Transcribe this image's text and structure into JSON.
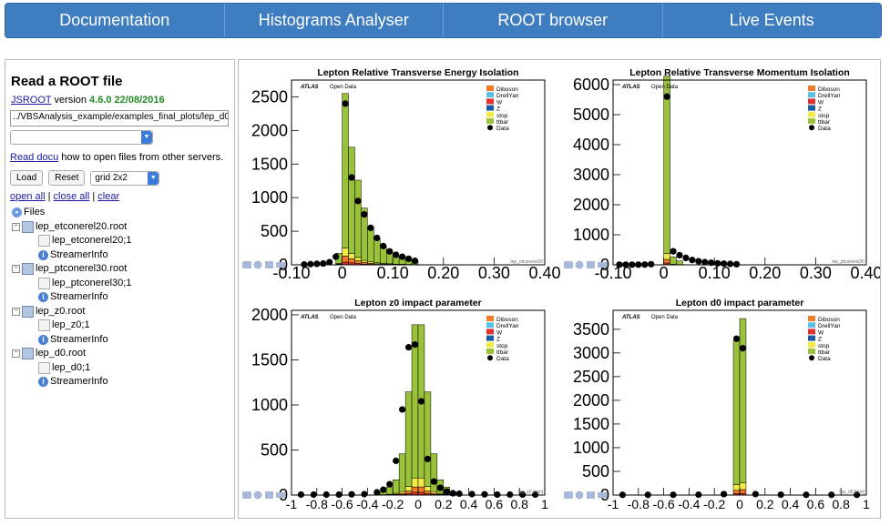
{
  "nav": [
    "Documentation",
    "Histograms Analyser",
    "ROOT browser",
    "Live Events"
  ],
  "left": {
    "title": "Read a ROOT file",
    "jsroot_link": "JSROOT",
    "version_word": "version",
    "version": "4.6.0 22/08/2016",
    "file_path": "../VBSAnalysis_example/examples_final_plots/lep_d0",
    "docu_link": "Read docu",
    "docu_text": "how to open files from other servers.",
    "load": "Load",
    "reset": "Reset",
    "grid": "grid 2x2",
    "open_all": "open all",
    "close_all": "close all",
    "clear": "clear",
    "sep": "|"
  },
  "tree": [
    {
      "label": "Files",
      "kind": "root"
    },
    {
      "label": "lep_etconerel20.root",
      "kind": "file"
    },
    {
      "label": "lep_etconerel20;1",
      "kind": "leaf"
    },
    {
      "label": "StreamerInfo",
      "kind": "info"
    },
    {
      "label": "lep_ptconerel30.root",
      "kind": "file"
    },
    {
      "label": "lep_ptconerel30;1",
      "kind": "leaf"
    },
    {
      "label": "StreamerInfo",
      "kind": "info"
    },
    {
      "label": "lep_z0.root",
      "kind": "file"
    },
    {
      "label": "lep_z0;1",
      "kind": "leaf"
    },
    {
      "label": "StreamerInfo",
      "kind": "info"
    },
    {
      "label": "lep_d0.root",
      "kind": "file"
    },
    {
      "label": "lep_d0;1",
      "kind": "leaf"
    },
    {
      "label": "StreamerInfo",
      "kind": "info"
    }
  ],
  "colors": {
    "Diboson": "#f07c2a",
    "DrellYan": "#5bc0e6",
    "W": "#e03030",
    "Z": "#1a5aa0",
    "stop": "#f2ea47",
    "ttbar": "#99c13a",
    "Data": "#000000"
  },
  "chart_data": [
    {
      "type": "bar",
      "title": "Lepton Relative Transverse Energy Isolation",
      "atlas_label": "ATLAS",
      "open_data_label": "Open Data",
      "xlim": [
        -0.1,
        0.4
      ],
      "ylim": [
        0,
        2750
      ],
      "yticks": [
        0,
        500,
        1000,
        1500,
        2000,
        2500
      ],
      "xticks": [
        "-0.10",
        "0",
        "0.10",
        "0.20",
        "0.30",
        "0.40"
      ],
      "bin_width": 0.0125,
      "bin_lows": [
        -0.0125,
        0,
        0.0125,
        0.025,
        0.0375,
        0.05,
        0.0625,
        0.075,
        0.0875,
        0.1,
        0.1125,
        0.125,
        0.1375
      ],
      "series": [
        {
          "name": "ttbar",
          "values": [
            150,
            2300,
            1580,
            1150,
            780,
            520,
            350,
            250,
            180,
            120,
            90,
            70,
            50
          ]
        },
        {
          "name": "stop",
          "values": [
            10,
            120,
            80,
            50,
            30,
            20,
            15,
            10,
            8,
            5,
            4,
            3,
            2
          ]
        },
        {
          "name": "Diboson",
          "values": [
            8,
            90,
            60,
            40,
            25,
            15,
            10,
            8,
            6,
            4,
            3,
            2,
            2
          ]
        },
        {
          "name": "W",
          "values": [
            5,
            40,
            30,
            20,
            10,
            8,
            5,
            4,
            3,
            2,
            2,
            1,
            1
          ]
        }
      ],
      "data_x": [
        -0.075,
        -0.0625,
        -0.05,
        -0.0375,
        -0.025,
        -0.0125,
        0.00625,
        0.01875,
        0.03125,
        0.04375,
        0.05625,
        0.06875,
        0.08125,
        0.09375,
        0.10625,
        0.11875,
        0.13125,
        0.14375
      ],
      "data_y": [
        5,
        10,
        15,
        20,
        40,
        120,
        2400,
        1300,
        950,
        750,
        550,
        400,
        280,
        200,
        150,
        120,
        90,
        60
      ],
      "legend": [
        "Diboson",
        "DrellYan",
        "W",
        "Z",
        "stop",
        "ttbar",
        "Data"
      ],
      "corner_label": "lep_etconerel20"
    },
    {
      "type": "bar",
      "title": "Lepton Relative Transverse Momentum Isolation",
      "atlas_label": "ATLAS",
      "open_data_label": "Open Data",
      "xlim": [
        -0.1,
        0.4
      ],
      "ylim": [
        0,
        6150
      ],
      "yticks": [
        0,
        1000,
        2000,
        3000,
        4000,
        5000,
        6000
      ],
      "xticks": [
        "-0.10",
        "0",
        "0.10",
        "0.20",
        "0.30",
        "0.40"
      ],
      "bin_width": 0.0125,
      "bin_lows": [
        -0.0125,
        0,
        0.0125,
        0.025
      ],
      "series": [
        {
          "name": "ttbar",
          "values": [
            0,
            5900,
            250,
            120
          ]
        },
        {
          "name": "stop",
          "values": [
            0,
            200,
            10,
            5
          ]
        },
        {
          "name": "Diboson",
          "values": [
            0,
            120,
            6,
            3
          ]
        },
        {
          "name": "W",
          "values": [
            0,
            60,
            3,
            2
          ]
        }
      ],
      "data_x": [
        -0.0875,
        -0.075,
        -0.0625,
        -0.05,
        -0.0375,
        -0.025,
        0.00625,
        0.01875,
        0.03125,
        0.04375,
        0.05625,
        0.06875,
        0.08125,
        0.09375,
        0.10625,
        0.11875,
        0.13125,
        0.14375
      ],
      "data_y": [
        5,
        5,
        5,
        5,
        10,
        20,
        5600,
        450,
        320,
        230,
        160,
        120,
        90,
        70,
        50,
        40,
        30,
        20
      ],
      "legend": [
        "Diboson",
        "DrellYan",
        "W",
        "Z",
        "stop",
        "ttbar",
        "Data"
      ],
      "corner_label": "lep_ptconerel30"
    },
    {
      "type": "bar",
      "title": "Lepton z0 impact parameter",
      "atlas_label": "ATLAS",
      "open_data_label": "Open Data",
      "xlim": [
        -1,
        1
      ],
      "ylim": [
        0,
        2050
      ],
      "yticks": [
        0,
        500,
        1000,
        1500,
        2000
      ],
      "xticks": [
        "-1",
        "-0.8",
        "-0.6",
        "-0.4",
        "-0.2",
        "0",
        "0.2",
        "0.4",
        "0.6",
        "0.8",
        "1"
      ],
      "bin_width": 0.05,
      "bin_lows": [
        -0.3,
        -0.25,
        -0.2,
        -0.15,
        -0.1,
        -0.05,
        0,
        0.05,
        0.1,
        0.15,
        0.2,
        0.25
      ],
      "series": [
        {
          "name": "ttbar",
          "values": [
            30,
            80,
            150,
            420,
            1050,
            1700,
            1700,
            1050,
            420,
            150,
            80,
            30
          ]
        },
        {
          "name": "stop",
          "values": [
            2,
            5,
            10,
            20,
            50,
            100,
            100,
            50,
            20,
            10,
            5,
            2
          ]
        },
        {
          "name": "Diboson",
          "values": [
            1,
            3,
            6,
            12,
            30,
            60,
            60,
            30,
            12,
            6,
            3,
            1
          ]
        },
        {
          "name": "W",
          "values": [
            1,
            1,
            3,
            6,
            15,
            30,
            30,
            15,
            6,
            3,
            1,
            1
          ]
        }
      ],
      "data_x": [
        -0.925,
        -0.825,
        -0.725,
        -0.625,
        -0.525,
        -0.425,
        -0.325,
        -0.275,
        -0.225,
        -0.175,
        -0.125,
        -0.075,
        -0.025,
        0.025,
        0.075,
        0.125,
        0.175,
        0.225,
        0.275,
        0.325,
        0.425,
        0.525,
        0.625,
        0.725,
        0.825,
        0.925
      ],
      "data_y": [
        5,
        5,
        5,
        5,
        8,
        10,
        30,
        60,
        120,
        380,
        950,
        1640,
        1670,
        1040,
        400,
        150,
        80,
        40,
        20,
        15,
        10,
        8,
        5,
        5,
        5,
        5
      ],
      "legend": [
        "Diboson",
        "DrellYan",
        "W",
        "Z",
        "stop",
        "ttbar",
        "Data"
      ],
      "corner_label": "lep_z0 [mm]"
    },
    {
      "type": "bar",
      "title": "Lepton d0 impact parameter",
      "atlas_label": "ATLAS",
      "open_data_label": "Open Data",
      "xlim": [
        -1,
        1
      ],
      "ylim": [
        0,
        3900
      ],
      "yticks": [
        0,
        500,
        1000,
        1500,
        2000,
        2500,
        3000,
        3500
      ],
      "xticks": [
        "-1",
        "-0.8",
        "-0.6",
        "-0.4",
        "-0.2",
        "0",
        "0.2",
        "0.4",
        "0.6",
        "0.8",
        "1"
      ],
      "bin_width": 0.05,
      "bin_lows": [
        -0.05,
        0
      ],
      "series": [
        {
          "name": "ttbar",
          "values": [
            3030,
            3470
          ]
        },
        {
          "name": "stop",
          "values": [
            120,
            140
          ]
        },
        {
          "name": "Diboson",
          "values": [
            70,
            80
          ]
        },
        {
          "name": "W",
          "values": [
            30,
            35
          ]
        }
      ],
      "data_x": [
        -0.925,
        -0.725,
        -0.525,
        -0.325,
        -0.125,
        -0.025,
        0.025,
        0.125,
        0.325,
        0.525,
        0.725,
        0.925
      ],
      "data_y": [
        5,
        5,
        5,
        8,
        20,
        3300,
        3100,
        20,
        8,
        5,
        5,
        5
      ],
      "legend": [
        "Diboson",
        "DrellYan",
        "W",
        "Z",
        "stop",
        "ttbar",
        "Data"
      ],
      "corner_label": "lep_d0 [mm]"
    }
  ]
}
